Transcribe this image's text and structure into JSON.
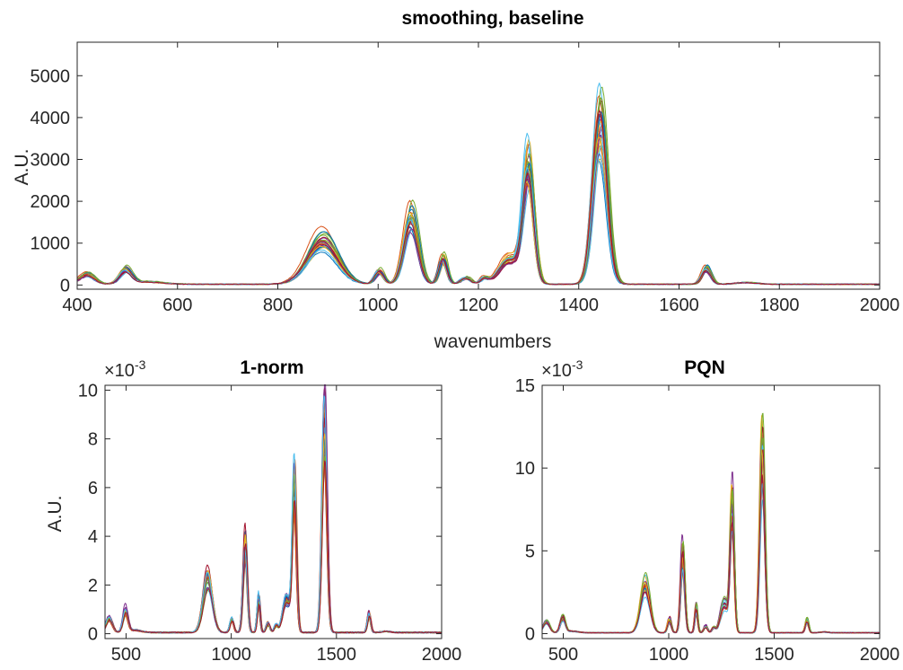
{
  "figure": {
    "colors": [
      "#0072BD",
      "#D95319",
      "#EDB120",
      "#7E2F8E",
      "#77AC30",
      "#4DBEEE",
      "#A2142F"
    ],
    "line_count": 28
  },
  "chart_data": [
    {
      "id": "top",
      "type": "line",
      "title": "smoothing, baseline",
      "xlabel": "wavenumbers",
      "ylabel": "A.U.",
      "xlim": [
        400,
        2000
      ],
      "ylim": [
        -100,
        5800
      ],
      "xticks": [
        400,
        600,
        800,
        1000,
        1200,
        1400,
        1600,
        1800,
        2000
      ],
      "yticks": [
        0,
        1000,
        2000,
        3000,
        4000,
        5000
      ],
      "xtick_labels": [
        "400",
        "600",
        "800",
        "1000",
        "1200",
        "1400",
        "1600",
        "1800",
        "2000"
      ],
      "ytick_labels": [
        "0",
        "1000",
        "2000",
        "3000",
        "4000",
        "5000"
      ],
      "exponent_label": "",
      "grid": false,
      "baseline": 20,
      "peaks": [
        {
          "x": 420,
          "height": 240,
          "width": 15
        },
        {
          "x": 497,
          "height": 350,
          "width": 12
        },
        {
          "x": 540,
          "height": 60,
          "width": 30
        },
        {
          "x": 890,
          "height": 1100,
          "width": 30
        },
        {
          "x": 1003,
          "height": 320,
          "width": 9
        },
        {
          "x": 1066,
          "height": 1700,
          "width": 14
        },
        {
          "x": 1130,
          "height": 650,
          "width": 8
        },
        {
          "x": 1175,
          "height": 160,
          "width": 10
        },
        {
          "x": 1212,
          "height": 140,
          "width": 8
        },
        {
          "x": 1262,
          "height": 650,
          "width": 20
        },
        {
          "x": 1300,
          "height": 3000,
          "width": 11
        },
        {
          "x": 1443,
          "height": 4300,
          "width": 14
        },
        {
          "x": 1655,
          "height": 400,
          "width": 9
        },
        {
          "x": 1735,
          "height": 40,
          "width": 20
        }
      ]
    },
    {
      "id": "left",
      "type": "line",
      "title": "1-norm",
      "xlabel": "",
      "ylabel": "A.U.",
      "xlim": [
        400,
        2000
      ],
      "ylim": [
        -0.2,
        10.2
      ],
      "xticks": [
        500,
        1000,
        1500,
        2000
      ],
      "yticks": [
        0,
        2,
        4,
        6,
        8,
        10
      ],
      "xtick_labels": [
        "500",
        "1000",
        "1500",
        "2000"
      ],
      "ytick_labels": [
        "0",
        "2",
        "4",
        "6",
        "8",
        "10"
      ],
      "exponent_label": "×10",
      "exponent": "-3",
      "grid": false,
      "baseline": 0.05,
      "peaks": [
        {
          "x": 420,
          "height": 0.6,
          "width": 15
        },
        {
          "x": 497,
          "height": 0.9,
          "width": 12
        },
        {
          "x": 540,
          "height": 0.1,
          "width": 30
        },
        {
          "x": 888,
          "height": 2.4,
          "width": 22
        },
        {
          "x": 1003,
          "height": 0.6,
          "width": 9
        },
        {
          "x": 1066,
          "height": 3.9,
          "width": 10
        },
        {
          "x": 1130,
          "height": 1.5,
          "width": 7
        },
        {
          "x": 1175,
          "height": 0.4,
          "width": 9
        },
        {
          "x": 1212,
          "height": 0.3,
          "width": 8
        },
        {
          "x": 1262,
          "height": 1.4,
          "width": 18
        },
        {
          "x": 1300,
          "height": 6.3,
          "width": 10
        },
        {
          "x": 1443,
          "height": 9.2,
          "width": 12
        },
        {
          "x": 1655,
          "height": 0.8,
          "width": 8
        },
        {
          "x": 1735,
          "height": 0.05,
          "width": 20
        }
      ]
    },
    {
      "id": "right",
      "type": "line",
      "title": "PQN",
      "xlabel": "",
      "ylabel": "",
      "xlim": [
        400,
        2000
      ],
      "ylim": [
        -0.3,
        15
      ],
      "xticks": [
        500,
        1000,
        1500,
        2000
      ],
      "yticks": [
        0,
        5,
        10,
        15
      ],
      "xtick_labels": [
        "500",
        "1000",
        "1500",
        "2000"
      ],
      "ytick_labels": [
        "0",
        "5",
        "10",
        "15"
      ],
      "exponent_label": "×10",
      "exponent": "-3",
      "grid": false,
      "baseline": 0.05,
      "peaks": [
        {
          "x": 420,
          "height": 0.7,
          "width": 15
        },
        {
          "x": 497,
          "height": 0.9,
          "width": 12
        },
        {
          "x": 540,
          "height": 0.1,
          "width": 30
        },
        {
          "x": 888,
          "height": 3.0,
          "width": 22
        },
        {
          "x": 1003,
          "height": 0.8,
          "width": 9
        },
        {
          "x": 1066,
          "height": 4.8,
          "width": 10
        },
        {
          "x": 1130,
          "height": 1.6,
          "width": 7
        },
        {
          "x": 1175,
          "height": 0.4,
          "width": 9
        },
        {
          "x": 1212,
          "height": 0.3,
          "width": 8
        },
        {
          "x": 1262,
          "height": 1.8,
          "width": 18
        },
        {
          "x": 1300,
          "height": 7.8,
          "width": 10
        },
        {
          "x": 1443,
          "height": 11.5,
          "width": 12
        },
        {
          "x": 1655,
          "height": 0.8,
          "width": 8
        },
        {
          "x": 1735,
          "height": 0.05,
          "width": 20
        }
      ]
    }
  ]
}
